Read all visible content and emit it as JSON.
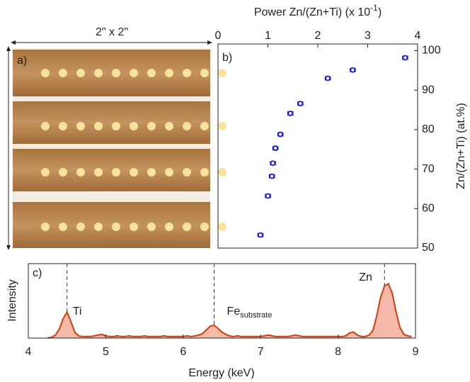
{
  "panel_a": {
    "label": "a)",
    "dimension": "2\" x 2\""
  },
  "chart_data": [
    {
      "type": "scatter",
      "label": "b)",
      "x_label": "Power Zn/(Zn+Ti) (x 10",
      "x_label_sup": "-1",
      "x_label_end": ")",
      "y_label": "Zn/(Zn+Ti) (at.%)",
      "x": [
        0.85,
        1.0,
        1.08,
        1.1,
        1.15,
        1.25,
        1.45,
        1.65,
        2.2,
        2.7,
        3.75
      ],
      "values": [
        53.3,
        63.2,
        68.2,
        71.5,
        75.3,
        78.8,
        84.1,
        86.6,
        93.0,
        95.1,
        98.2
      ],
      "xerr": [
        0.05,
        0.05,
        0.05,
        0.05,
        0.05,
        0.05,
        0.05,
        0.05,
        0.05,
        0.05,
        0.05
      ],
      "color": "#1a1ad6",
      "xlim": [
        0,
        4
      ],
      "xticks": [
        0,
        1,
        2,
        3,
        4
      ],
      "ylim": [
        50,
        101.7
      ],
      "yticks": [
        50,
        60,
        70,
        80,
        90,
        100
      ]
    },
    {
      "type": "area",
      "label": "c)",
      "x_label": "Energy (keV)",
      "y_label": "Intensity",
      "x": [
        4.25,
        4.3,
        4.35,
        4.4,
        4.45,
        4.5,
        4.55,
        4.6,
        4.65,
        4.7,
        4.75,
        4.8,
        4.85,
        4.9,
        4.95,
        5.0,
        5.05,
        5.1,
        5.15,
        5.2,
        5.25,
        5.3,
        5.35,
        5.4,
        5.45,
        5.5,
        5.55,
        5.6,
        5.65,
        5.7,
        5.75,
        5.8,
        5.85,
        5.9,
        5.95,
        6.0,
        6.05,
        6.1,
        6.15,
        6.2,
        6.25,
        6.3,
        6.35,
        6.4,
        6.45,
        6.5,
        6.55,
        6.6,
        6.65,
        6.7,
        6.75,
        6.8,
        6.85,
        6.9,
        6.95,
        7.0,
        7.05,
        7.1,
        7.15,
        7.2,
        7.25,
        7.3,
        7.35,
        7.4,
        7.45,
        7.5,
        7.55,
        7.6,
        7.65,
        7.7,
        7.75,
        7.8,
        7.85,
        7.9,
        7.95,
        8.0,
        8.05,
        8.1,
        8.15,
        8.2,
        8.25,
        8.3,
        8.35,
        8.4,
        8.45,
        8.5,
        8.55,
        8.6,
        8.65,
        8.7,
        8.75,
        8.8,
        8.85,
        8.9,
        8.95
      ],
      "values": [
        0,
        0.01,
        0.04,
        0.12,
        0.26,
        0.35,
        0.22,
        0.08,
        0.03,
        0.02,
        0.02,
        0.02,
        0.03,
        0.04,
        0.05,
        0.03,
        0.02,
        0.02,
        0.03,
        0.02,
        0.02,
        0.03,
        0.02,
        0.02,
        0.02,
        0.03,
        0.02,
        0.02,
        0.02,
        0.02,
        0.03,
        0.02,
        0.02,
        0.02,
        0.02,
        0.02,
        0.03,
        0.02,
        0.03,
        0.04,
        0.06,
        0.11,
        0.16,
        0.17,
        0.13,
        0.08,
        0.05,
        0.03,
        0.02,
        0.03,
        0.02,
        0.02,
        0.02,
        0.02,
        0.02,
        0.02,
        0.03,
        0.04,
        0.03,
        0.02,
        0.02,
        0.02,
        0.02,
        0.03,
        0.04,
        0.03,
        0.02,
        0.02,
        0.02,
        0.02,
        0.02,
        0.02,
        0.02,
        0.02,
        0.02,
        0.02,
        0.02,
        0.03,
        0.07,
        0.08,
        0.04,
        0.02,
        0.02,
        0.04,
        0.1,
        0.3,
        0.55,
        0.7,
        0.73,
        0.6,
        0.35,
        0.14,
        0.05,
        0.03,
        0.02
      ],
      "color": "#cc4a1a",
      "fill": "#f4b9a8",
      "xlim": [
        4,
        9
      ],
      "xticks": [
        4,
        5,
        6,
        7,
        8,
        9
      ],
      "ylim": [
        0,
        1
      ],
      "markers": [
        {
          "x": 4.5,
          "text": "Ti"
        },
        {
          "x": 6.4,
          "text": "Fe",
          "sub": "substrate"
        },
        {
          "x": 8.6,
          "text": "Zn"
        }
      ]
    }
  ]
}
